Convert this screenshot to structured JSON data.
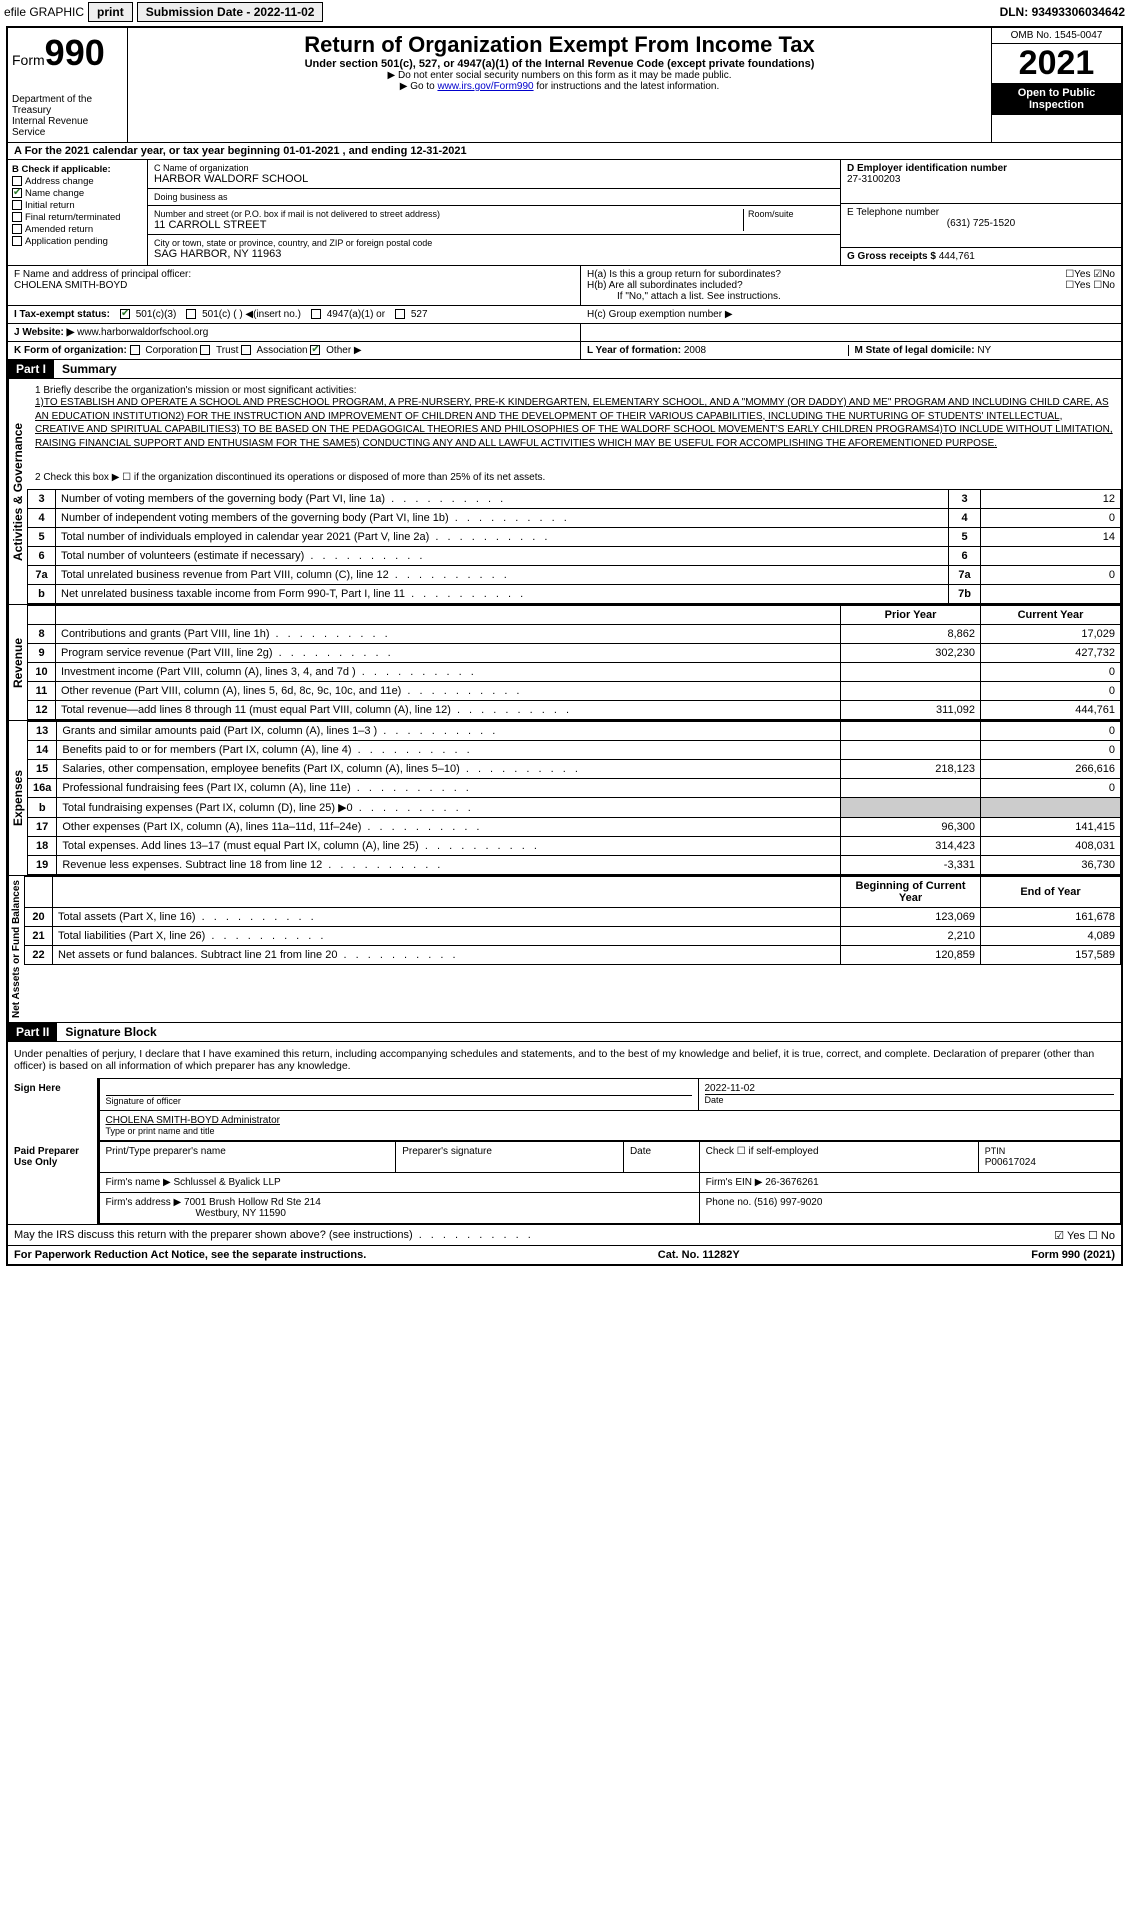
{
  "topbar": {
    "efile": "efile GRAPHIC",
    "print": "print",
    "submission_label": "Submission Date - ",
    "submission_date": "2022-11-02",
    "dln_label": "DLN: ",
    "dln": "93493306034642"
  },
  "header": {
    "form_prefix": "Form",
    "form_num": "990",
    "dept": "Department of the Treasury",
    "irs": "Internal Revenue Service",
    "title": "Return of Organization Exempt From Income Tax",
    "sub": "Under section 501(c), 527, or 4947(a)(1) of the Internal Revenue Code (except private foundations)",
    "note1": "▶ Do not enter social security numbers on this form as it may be made public.",
    "note2_pre": "▶ Go to ",
    "note2_link": "www.irs.gov/Form990",
    "note2_post": " for instructions and the latest information.",
    "omb": "OMB No. 1545-0047",
    "year": "2021",
    "open": "Open to Public Inspection"
  },
  "rowA": "A For the 2021 calendar year, or tax year beginning 01-01-2021   , and ending 12-31-2021",
  "boxB": {
    "title": "B Check if applicable:",
    "items": [
      {
        "label": "Address change",
        "checked": false
      },
      {
        "label": "Name change",
        "checked": true
      },
      {
        "label": "Initial return",
        "checked": false
      },
      {
        "label": "Final return/terminated",
        "checked": false
      },
      {
        "label": "Amended return",
        "checked": false
      },
      {
        "label": "Application pending",
        "checked": false
      }
    ]
  },
  "boxC": {
    "name_lbl": "C Name of organization",
    "name": "HARBOR WALDORF SCHOOL",
    "dba_lbl": "Doing business as",
    "dba": "",
    "addr_lbl": "Number and street (or P.O. box if mail is not delivered to street address)",
    "addr": "11 CARROLL STREET",
    "room_lbl": "Room/suite",
    "city_lbl": "City or town, state or province, country, and ZIP or foreign postal code",
    "city": "SAG HARBOR, NY  11963"
  },
  "boxD": {
    "lbl": "D Employer identification number",
    "val": "27-3100203"
  },
  "boxE": {
    "lbl": "E Telephone number",
    "val": "(631) 725-1520"
  },
  "boxG": {
    "lbl": "G Gross receipts $",
    "val": "444,761"
  },
  "boxF": {
    "lbl": "F  Name and address of principal officer:",
    "val": "CHOLENA SMITH-BOYD"
  },
  "boxH": {
    "a": "H(a)  Is this a group return for subordinates?",
    "b": "H(b)  Are all subordinates included?",
    "note": "If \"No,\" attach a list. See instructions.",
    "c": "H(c)  Group exemption number ▶"
  },
  "boxI": {
    "lbl": "I   Tax-exempt status:",
    "opts": [
      "501(c)(3)",
      "501(c) (  ) ◀(insert no.)",
      "4947(a)(1) or",
      "527"
    ]
  },
  "boxJ": {
    "lbl": "J  Website: ▶",
    "val": "www.harborwaldorfschool.org"
  },
  "boxK": {
    "lbl": "K Form of organization:",
    "opts": [
      "Corporation",
      "Trust",
      "Association",
      "Other ▶"
    ]
  },
  "boxL": {
    "lbl": "L Year of formation:",
    "val": "2008"
  },
  "boxM": {
    "lbl": "M State of legal domicile:",
    "val": "NY"
  },
  "part1": {
    "hdr": "Part I",
    "title": "Summary",
    "q1": "1  Briefly describe the organization's mission or most significant activities:",
    "mission": "1)TO ESTABLISH AND OPERATE A SCHOOL AND PRESCHOOL PROGRAM, A PRE-NURSERY, PRE-K KINDERGARTEN, ELEMENTARY SCHOOL, AND A \"MOMMY (OR DADDY) AND ME\" PROGRAM AND INCLUDING CHILD CARE, AS AN EDUCATION INSTITUTION2) FOR THE INSTRUCTION AND IMPROVEMENT OF CHILDREN AND THE DEVELOPMENT OF THEIR VARIOUS CAPABILITIES, INCLUDING THE NURTURING OF STUDENTS' INTELLECTUAL, CREATIVE AND SPIRITUAL CAPABILITIES3) TO BE BASED ON THE PEDAGOGICAL THEORIES AND PHILOSOPHIES OF THE WALDORF SCHOOL MOVEMENT'S EARLY CHILDREN PROGRAMS4)TO INCLUDE WITHOUT LIMITATION, RAISING FINANCIAL SUPPORT AND ENTHUSIASM FOR THE SAME5) CONDUCTING ANY AND ALL LAWFUL ACTIVITIES WHICH MAY BE USEFUL FOR ACCOMPLISHING THE AFOREMENTIONED PURPOSE.",
    "q2": "2   Check this box ▶ ☐  if the organization discontinued its operations or disposed of more than 25% of its net assets.",
    "lines_gov": [
      {
        "n": "3",
        "t": "Number of voting members of the governing body (Part VI, line 1a)",
        "box": "3",
        "v": "12"
      },
      {
        "n": "4",
        "t": "Number of independent voting members of the governing body (Part VI, line 1b)",
        "box": "4",
        "v": "0"
      },
      {
        "n": "5",
        "t": "Total number of individuals employed in calendar year 2021 (Part V, line 2a)",
        "box": "5",
        "v": "14"
      },
      {
        "n": "6",
        "t": "Total number of volunteers (estimate if necessary)",
        "box": "6",
        "v": ""
      },
      {
        "n": "7a",
        "t": "Total unrelated business revenue from Part VIII, column (C), line 12",
        "box": "7a",
        "v": "0"
      },
      {
        "n": "b",
        "t": "Net unrelated business taxable income from Form 990-T, Part I, line 11",
        "box": "7b",
        "v": ""
      }
    ],
    "col_prior": "Prior Year",
    "col_current": "Current Year",
    "lines_rev": [
      {
        "n": "8",
        "t": "Contributions and grants (Part VIII, line 1h)",
        "p": "8,862",
        "c": "17,029"
      },
      {
        "n": "9",
        "t": "Program service revenue (Part VIII, line 2g)",
        "p": "302,230",
        "c": "427,732"
      },
      {
        "n": "10",
        "t": "Investment income (Part VIII, column (A), lines 3, 4, and 7d )",
        "p": "",
        "c": "0"
      },
      {
        "n": "11",
        "t": "Other revenue (Part VIII, column (A), lines 5, 6d, 8c, 9c, 10c, and 11e)",
        "p": "",
        "c": "0"
      },
      {
        "n": "12",
        "t": "Total revenue—add lines 8 through 11 (must equal Part VIII, column (A), line 12)",
        "p": "311,092",
        "c": "444,761"
      }
    ],
    "lines_exp": [
      {
        "n": "13",
        "t": "Grants and similar amounts paid (Part IX, column (A), lines 1–3 )",
        "p": "",
        "c": "0"
      },
      {
        "n": "14",
        "t": "Benefits paid to or for members (Part IX, column (A), line 4)",
        "p": "",
        "c": "0"
      },
      {
        "n": "15",
        "t": "Salaries, other compensation, employee benefits (Part IX, column (A), lines 5–10)",
        "p": "218,123",
        "c": "266,616"
      },
      {
        "n": "16a",
        "t": "Professional fundraising fees (Part IX, column (A), line 11e)",
        "p": "",
        "c": "0"
      },
      {
        "n": "b",
        "t": "Total fundraising expenses (Part IX, column (D), line 25) ▶0",
        "p": "shade",
        "c": "shade"
      },
      {
        "n": "17",
        "t": "Other expenses (Part IX, column (A), lines 11a–11d, 11f–24e)",
        "p": "96,300",
        "c": "141,415"
      },
      {
        "n": "18",
        "t": "Total expenses. Add lines 13–17 (must equal Part IX, column (A), line 25)",
        "p": "314,423",
        "c": "408,031"
      },
      {
        "n": "19",
        "t": "Revenue less expenses. Subtract line 18 from line 12",
        "p": "-3,331",
        "c": "36,730"
      }
    ],
    "col_begin": "Beginning of Current Year",
    "col_end": "End of Year",
    "lines_net": [
      {
        "n": "20",
        "t": "Total assets (Part X, line 16)",
        "p": "123,069",
        "c": "161,678"
      },
      {
        "n": "21",
        "t": "Total liabilities (Part X, line 26)",
        "p": "2,210",
        "c": "4,089"
      },
      {
        "n": "22",
        "t": "Net assets or fund balances. Subtract line 21 from line 20",
        "p": "120,859",
        "c": "157,589"
      }
    ]
  },
  "part2": {
    "hdr": "Part II",
    "title": "Signature Block",
    "decl": "Under penalties of perjury, I declare that I have examined this return, including accompanying schedules and statements, and to the best of my knowledge and belief, it is true, correct, and complete. Declaration of preparer (other than officer) is based on all information of which preparer has any knowledge.",
    "sign_here": "Sign Here",
    "sig_officer": "Signature of officer",
    "sig_date": "Date",
    "sig_date_val": "2022-11-02",
    "officer_name": "CHOLENA SMITH-BOYD  Administrator",
    "officer_lbl": "Type or print name and title",
    "paid": "Paid Preparer Use Only",
    "prep_name_lbl": "Print/Type preparer's name",
    "prep_sig_lbl": "Preparer's signature",
    "prep_date_lbl": "Date",
    "prep_check": "Check ☐ if self-employed",
    "ptin_lbl": "PTIN",
    "ptin": "P00617024",
    "firm_name_lbl": "Firm's name    ▶",
    "firm_name": "Schlussel & Byalick LLP",
    "firm_ein_lbl": "Firm's EIN ▶",
    "firm_ein": "26-3676261",
    "firm_addr_lbl": "Firm's address ▶",
    "firm_addr": "7001 Brush Hollow Rd Ste 214",
    "firm_city": "Westbury, NY  11590",
    "phone_lbl": "Phone no.",
    "phone": "(516) 997-9020",
    "discuss": "May the IRS discuss this return with the preparer shown above? (see instructions)"
  },
  "footer": {
    "left": "For Paperwork Reduction Act Notice, see the separate instructions.",
    "mid": "Cat. No. 11282Y",
    "right": "Form 990 (2021)"
  },
  "vert_labels": {
    "gov": "Activities & Governance",
    "rev": "Revenue",
    "exp": "Expenses",
    "net": "Net Assets or Fund Balances"
  }
}
